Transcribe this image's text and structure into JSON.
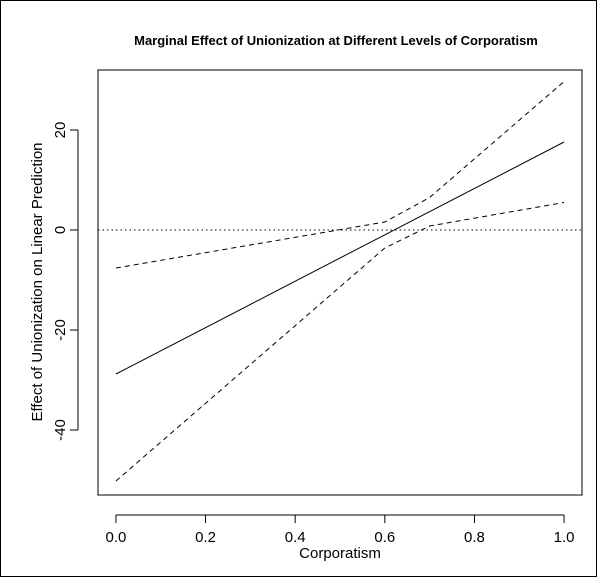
{
  "chart_data": {
    "type": "line",
    "title": "Marginal Effect of Unionization at Different Levels of Corporatism",
    "xlabel": "Corporatism",
    "ylabel": "Effect of Unionization on Linear Prediction",
    "xlim": [
      -0.04,
      1.04
    ],
    "ylim": [
      -53,
      32
    ],
    "xticks": [
      0.0,
      0.2,
      0.4,
      0.6,
      0.8,
      1.0
    ],
    "xtick_labels": [
      "0.0",
      "0.2",
      "0.4",
      "0.6",
      "0.8",
      "1.0"
    ],
    "yticks": [
      -40,
      -20,
      0,
      20
    ],
    "ytick_labels": [
      "-40",
      "-20",
      "0",
      "20"
    ],
    "grid": false,
    "reference_line": {
      "y": 0,
      "style": "dotted"
    },
    "series": [
      {
        "style": "solid",
        "x": [
          0.0,
          1.0
        ],
        "y": [
          -28.8,
          17.6
        ]
      },
      {
        "style": "dashed",
        "x": [
          0.0,
          0.6,
          0.7,
          1.0
        ],
        "y": [
          -7.6,
          1.6,
          6.5,
          29.7
        ]
      },
      {
        "style": "dashed",
        "x": [
          0.0,
          0.6,
          0.7,
          1.0
        ],
        "y": [
          -50.2,
          -3.6,
          0.8,
          5.5
        ]
      }
    ]
  }
}
